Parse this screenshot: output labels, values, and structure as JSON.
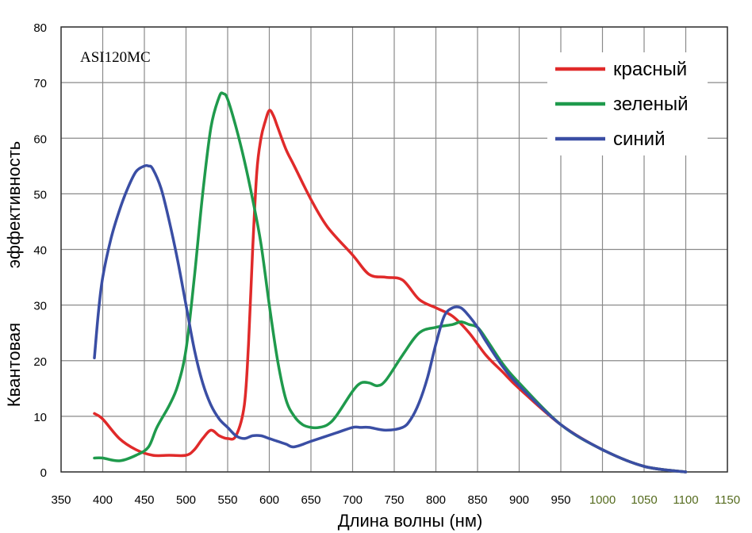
{
  "chart_data": {
    "type": "line",
    "model_label": "ASI120MC",
    "xlabel": "Длина волны (нм)",
    "ylabel_line1": "Квантовая",
    "ylabel_line2": "эффективность",
    "xlim": [
      350,
      1150
    ],
    "ylim": [
      0,
      80
    ],
    "xticks": [
      350,
      400,
      450,
      500,
      550,
      600,
      650,
      700,
      750,
      800,
      850,
      900,
      950,
      1000,
      1050,
      1100,
      1150
    ],
    "xtick_labels": [
      "350",
      "400",
      "450",
      "500",
      "550",
      "600",
      "650",
      "700",
      "750",
      "800",
      "850",
      "900",
      "950",
      "1000",
      "1050",
      "1100",
      "1150"
    ],
    "yticks": [
      0,
      10,
      20,
      30,
      40,
      50,
      60,
      70,
      80
    ],
    "ytick_labels": [
      "0",
      "10",
      "20",
      "30",
      "40",
      "50",
      "60",
      "70",
      "80"
    ],
    "grid": true,
    "legend_position": "top-right",
    "series": [
      {
        "name": "красный",
        "color": "#e02a2a",
        "x": [
          390,
          400,
          420,
          440,
          460,
          480,
          500,
          510,
          520,
          530,
          540,
          550,
          560,
          570,
          575,
          580,
          585,
          590,
          595,
          600,
          605,
          610,
          620,
          630,
          650,
          670,
          700,
          720,
          740,
          760,
          780,
          800,
          820,
          840,
          860,
          880,
          900,
          950,
          1000,
          1050,
          1100
        ],
        "values": [
          10.5,
          9.5,
          6,
          4,
          3,
          3,
          3,
          4,
          6,
          7.5,
          6.5,
          6,
          6.5,
          12,
          23,
          40,
          54,
          60,
          63,
          65,
          64,
          62,
          58,
          55,
          49,
          44,
          39,
          35.5,
          35,
          34.5,
          31,
          29.5,
          28,
          25,
          21,
          18,
          15,
          8.5,
          4,
          1,
          0
        ]
      },
      {
        "name": "зеленый",
        "color": "#1f9a4c",
        "x": [
          390,
          400,
          420,
          440,
          455,
          465,
          480,
          490,
          500,
          510,
          520,
          530,
          540,
          545,
          550,
          560,
          570,
          580,
          590,
          600,
          610,
          620,
          630,
          640,
          650,
          660,
          670,
          680,
          700,
          710,
          720,
          730,
          740,
          760,
          780,
          800,
          820,
          830,
          840,
          850,
          860,
          880,
          900,
          950,
          1000,
          1050,
          1100
        ],
        "values": [
          2.5,
          2.5,
          2,
          3,
          4.5,
          8,
          12,
          15.5,
          22,
          35,
          50,
          62,
          67.5,
          68,
          67,
          62,
          56,
          49,
          41,
          30,
          20,
          13,
          10,
          8.5,
          8,
          8,
          8.5,
          10,
          14.5,
          16,
          16,
          15.5,
          16.5,
          21,
          25,
          26,
          26.5,
          27,
          26.5,
          26,
          24,
          19.5,
          16,
          8.5,
          4,
          1,
          0
        ]
      },
      {
        "name": "синий",
        "color": "#3a4ea4",
        "x": [
          390,
          395,
          400,
          410,
          420,
          430,
          440,
          450,
          455,
          460,
          470,
          480,
          490,
          500,
          510,
          520,
          530,
          540,
          550,
          560,
          570,
          580,
          590,
          600,
          610,
          620,
          630,
          650,
          680,
          700,
          710,
          720,
          740,
          760,
          770,
          780,
          790,
          800,
          810,
          820,
          830,
          840,
          850,
          860,
          880,
          900,
          950,
          1000,
          1050,
          1100
        ],
        "values": [
          20.5,
          29,
          35,
          42,
          47,
          51,
          54,
          55,
          55,
          54.5,
          51,
          45,
          38,
          30,
          22,
          16,
          12,
          9.5,
          8,
          6.5,
          6,
          6.5,
          6.5,
          6,
          5.5,
          5,
          4.5,
          5.5,
          7,
          8,
          8,
          8,
          7.5,
          8,
          9.5,
          12.5,
          17,
          23,
          28,
          29.5,
          29.5,
          28,
          26,
          23.5,
          19,
          15.5,
          8.5,
          4,
          1,
          0
        ]
      }
    ]
  }
}
